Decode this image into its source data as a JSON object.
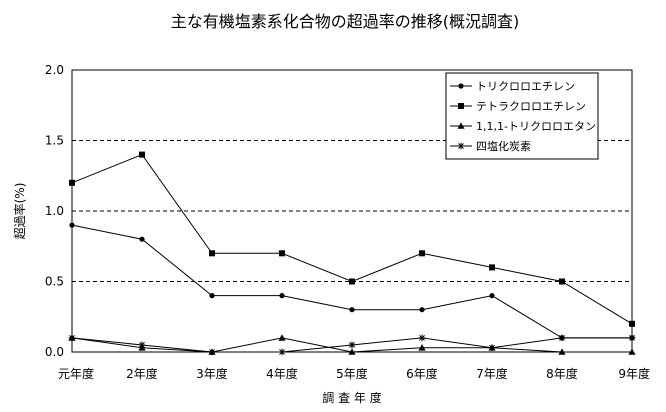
{
  "chart_data": {
    "type": "line",
    "title": "主な有機塩素系化合物の超過率の推移(概況調査)",
    "xlabel": "調 査 年 度",
    "ylabel": "超過率(%)",
    "categories": [
      "元年度",
      "2年度",
      "3年度",
      "4年度",
      "5年度",
      "6年度",
      "7年度",
      "8年度",
      "9年度"
    ],
    "ylim": [
      0,
      2.0
    ],
    "yticks": [
      "0.0",
      "0.5",
      "1.0",
      "1.5",
      "2.0"
    ],
    "grid": "dashed horizontal",
    "legend_position": "top-right",
    "series": [
      {
        "name": "トリクロロエチレン",
        "marker": "circle",
        "values": [
          0.9,
          0.8,
          0.4,
          0.4,
          0.3,
          0.3,
          0.4,
          0.1,
          0.1
        ]
      },
      {
        "name": "テトラクロロエチレン",
        "marker": "square",
        "values": [
          1.2,
          1.4,
          0.7,
          0.7,
          0.5,
          0.7,
          0.6,
          0.5,
          0.2
        ]
      },
      {
        "name": "1,1,1-トリクロロエタン",
        "marker": "triangle",
        "values": [
          0.1,
          0.03,
          0.0,
          0.1,
          0.0,
          0.03,
          0.03,
          0.0,
          0.0
        ]
      },
      {
        "name": "四塩化炭素",
        "marker": "asterisk",
        "values": [
          0.1,
          0.05,
          0.0,
          0.0,
          0.05,
          0.1,
          0.03,
          0.1,
          0.1
        ]
      }
    ]
  }
}
